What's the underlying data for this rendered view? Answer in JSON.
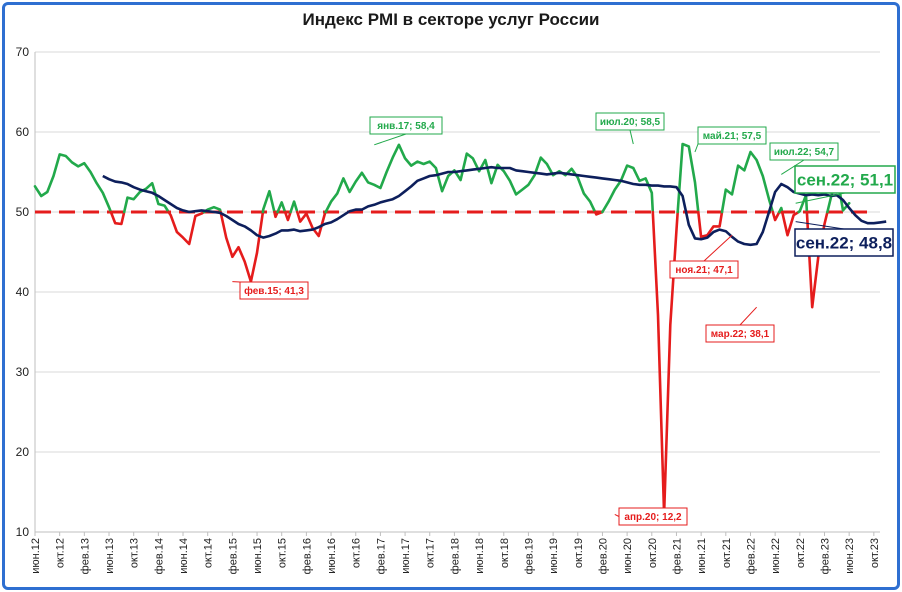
{
  "chart_data": {
    "type": "line",
    "title": "Индекс PMI в секторе услуг России",
    "ylim": [
      10,
      70
    ],
    "yticks": [
      10,
      20,
      30,
      40,
      50,
      60,
      70
    ],
    "x_start": "2012-06",
    "x_end": "2023-11",
    "x_tick_labels": [
      "июн.12",
      "окт.12",
      "фев.13",
      "июн.13",
      "окт.13",
      "фев.14",
      "июн.14",
      "окт.14",
      "фев.15",
      "июн.15",
      "окт.15",
      "фев.16",
      "июн.16",
      "окт.16",
      "фев.17",
      "июн.17",
      "окт.17",
      "фев.18",
      "июн.18",
      "окт.18",
      "фев.19",
      "июн.19",
      "окт.19",
      "фев.20",
      "июн.20",
      "окт.20",
      "фев.21",
      "июн.21",
      "окт.21",
      "фев.22",
      "июн.22",
      "окт.22",
      "фев.23",
      "июн.23",
      "окт.23"
    ],
    "threshold": 50,
    "colors": {
      "above": "#22a94b",
      "below": "#e51c1c",
      "average": "#0d1f5c",
      "threshold": "#e51c1c"
    },
    "series": [
      {
        "start": "2012-06",
        "values": [
          53.2,
          52.0,
          52.5,
          54.5,
          57.2,
          57.0,
          56.2,
          55.7,
          56.1,
          55.0,
          53.6,
          52.4,
          50.6,
          48.6,
          48.5,
          51.8,
          51.6,
          52.5,
          52.9,
          53.6,
          51.0,
          50.8,
          49.6,
          47.5,
          46.8,
          46.0,
          49.5,
          49.8,
          50.3,
          50.6,
          50.3,
          46.8,
          44.4,
          45.6,
          43.8,
          41.3,
          44.9,
          50.3,
          52.6,
          49.4,
          51.2,
          49.0,
          51.3,
          48.8,
          49.8,
          48.0,
          47.0,
          49.8,
          51.3,
          52.3,
          54.2,
          52.5,
          53.8,
          54.9,
          53.7,
          53.4,
          53.0,
          55.0,
          56.8,
          58.4,
          56.7,
          55.8,
          56.3,
          56.0,
          56.3,
          55.5,
          52.6,
          54.5,
          55.2,
          54.0,
          57.3,
          56.7,
          55.1,
          56.5,
          53.6,
          55.9,
          55.1,
          53.9,
          52.2,
          52.8,
          53.4,
          54.6,
          56.8,
          56.0,
          54.6,
          55.1,
          54.6,
          55.4,
          54.3,
          52.3,
          51.3,
          49.7,
          50.0,
          51.3,
          52.8,
          53.9,
          55.8,
          55.5,
          53.9,
          54.2,
          52.4,
          37.1,
          12.2,
          35.9,
          47.8,
          58.5,
          58.2,
          53.7,
          46.9,
          47.1,
          48.2,
          48.2,
          52.8,
          52.2,
          55.8,
          55.2,
          57.5,
          56.5,
          54.5,
          51.6,
          49.0,
          50.5,
          47.1,
          49.6,
          50.1,
          52.1,
          38.1,
          44.4,
          48.5,
          51.7,
          54.7,
          50.2,
          51.1
        ]
      },
      {
        "name": "",
        "start": "2013-05",
        "values": [
          54.5,
          54.1,
          53.8,
          53.7,
          53.5,
          53.1,
          52.8,
          52.6,
          52.4,
          52.0,
          51.5,
          51.0,
          50.5,
          50.2,
          50.0,
          50.1,
          50.2,
          50.1,
          50.0,
          49.9,
          49.5,
          49.0,
          48.5,
          48.2,
          47.7,
          47.1,
          46.8,
          47.0,
          47.3,
          47.7,
          47.7,
          47.8,
          47.6,
          47.7,
          47.8,
          48.1,
          48.5,
          48.7,
          49.1,
          49.6,
          50.1,
          50.3,
          50.3,
          50.7,
          50.9,
          51.2,
          51.4,
          51.6,
          52.0,
          52.6,
          53.2,
          53.9,
          54.2,
          54.5,
          54.6,
          54.8,
          55.0,
          55.0,
          55.1,
          55.2,
          55.3,
          55.4,
          55.5,
          55.6,
          55.5,
          55.5,
          55.5,
          55.2,
          55.1,
          55.0,
          54.9,
          54.8,
          54.7,
          54.8,
          54.9,
          54.8,
          54.7,
          54.6,
          54.5,
          54.4,
          54.3,
          54.2,
          54.1,
          54.0,
          53.9,
          53.7,
          53.5,
          53.4,
          53.4,
          53.3,
          53.3,
          53.2,
          53.2,
          53.1,
          52.0,
          48.4,
          46.7,
          46.6,
          46.8,
          47.5,
          47.8,
          47.6,
          46.9,
          46.3,
          46.0,
          45.9,
          46.0,
          47.5,
          50.0,
          52.5,
          53.5,
          53.1,
          52.5,
          52.3,
          52.1,
          52.2,
          52.1,
          52.2,
          52.0,
          52.1,
          51.5,
          50.5,
          49.6,
          48.9,
          48.6,
          48.6,
          48.7,
          48.8
        ]
      }
    ],
    "annotations": [
      {
        "label": "фев.15; 41,3",
        "color": "#e51c1c"
      },
      {
        "label": "янв.17; 58,4",
        "color": "#22a94b"
      },
      {
        "label": "апр.20; 12,2",
        "color": "#e51c1c"
      },
      {
        "label": "июл.20; 58,5",
        "color": "#22a94b"
      },
      {
        "label": "май.21; 57,5",
        "color": "#22a94b"
      },
      {
        "label": "ноя.21; 47,1",
        "color": "#e51c1c"
      },
      {
        "label": "мар.22; 38,1",
        "color": "#e51c1c"
      },
      {
        "label": "июл.22; 54,7",
        "color": "#22a94b"
      },
      {
        "label": "сен.22; 51,1",
        "color": "#22a94b"
      },
      {
        "label": "сен.22; 48,8",
        "color": "#0d1f5c"
      }
    ]
  }
}
